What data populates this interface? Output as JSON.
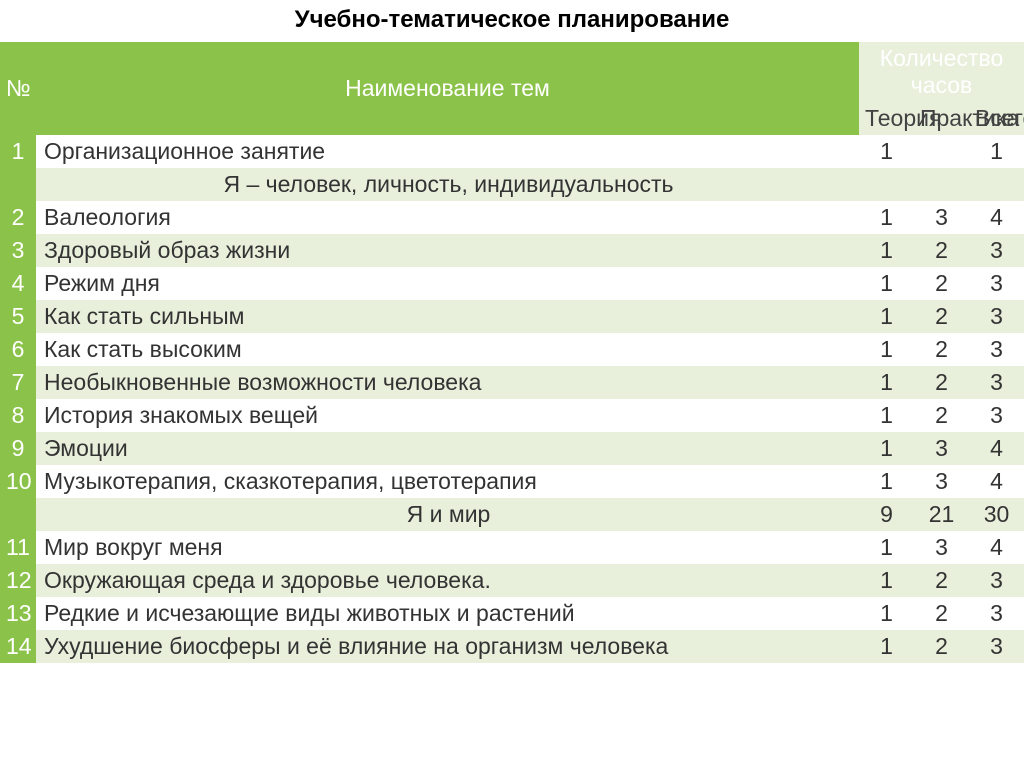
{
  "title": "Учебно-тематическое планирование",
  "headers": {
    "num": "№",
    "name": "Наименование тем",
    "hours": "Количество часов",
    "theory": "Теория",
    "practice": "Практика",
    "total": "Всего"
  },
  "colors": {
    "header_green": "#8bc34a",
    "header_light": "#e8f0dc",
    "row_odd": "#ffffff",
    "row_even": "#e8f0dc",
    "text": "#333333",
    "header_text": "#ffffff"
  },
  "rows": [
    {
      "num": "1",
      "name": "Организационное занятие",
      "t": "1",
      "p": "",
      "v": "1",
      "section": false
    },
    {
      "num": "",
      "name": "Я – человек, личность, индивидуальность",
      "t": "",
      "p": "",
      "v": "",
      "section": true
    },
    {
      "num": "2",
      "name": "Валеология",
      "t": "1",
      "p": "3",
      "v": "4",
      "section": false
    },
    {
      "num": "3",
      "name": "Здоровый образ жизни",
      "t": "1",
      "p": "2",
      "v": "3",
      "section": false
    },
    {
      "num": "4",
      "name": "Режим дня",
      "t": "1",
      "p": "2",
      "v": "3",
      "section": false
    },
    {
      "num": "5",
      "name": "Как стать сильным",
      "t": "1",
      "p": "2",
      "v": "3",
      "section": false
    },
    {
      "num": "6",
      "name": "Как стать  высоким",
      "t": "1",
      "p": "2",
      "v": "3",
      "section": false
    },
    {
      "num": "7",
      "name": "Необыкновенные возможности человека",
      "t": "1",
      "p": "2",
      "v": "3",
      "section": false
    },
    {
      "num": "8",
      "name": "История знакомых вещей",
      "t": "1",
      "p": "2",
      "v": "3",
      "section": false
    },
    {
      "num": "9",
      "name": "Эмоции",
      "t": "1",
      "p": "3",
      "v": "4",
      "section": false
    },
    {
      "num": "10",
      "name": "Музыкотерапия, сказкотерапия, цветотерапия",
      "t": "1",
      "p": "3",
      "v": "4",
      "section": false
    },
    {
      "num": "",
      "name": "Я и мир",
      "t": "9",
      "p": "21",
      "v": "30",
      "section": true
    },
    {
      "num": "11",
      "name": "Мир вокруг меня",
      "t": "1",
      "p": "3",
      "v": "4",
      "section": false
    },
    {
      "num": "12",
      "name": "Окружающая среда и здоровье человека.",
      "t": "1",
      "p": "2",
      "v": "3",
      "section": false
    },
    {
      "num": "13",
      "name": "Редкие и исчезающие виды животных и растений",
      "t": "1",
      "p": "2",
      "v": "3",
      "section": false
    },
    {
      "num": "14",
      "name": "Ухудшение биосферы и её влияние на организм человека",
      "t": "1",
      "p": "2",
      "v": "3",
      "section": false
    }
  ]
}
